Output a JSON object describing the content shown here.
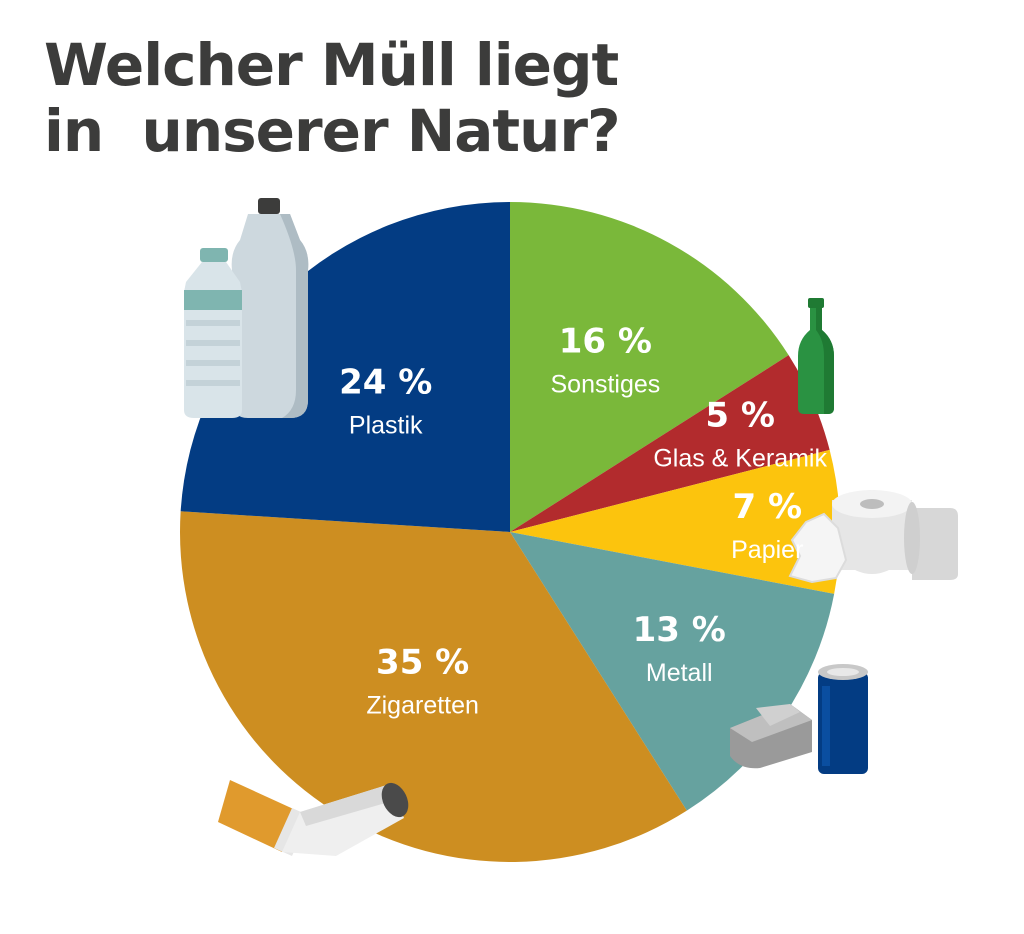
{
  "title_lines": [
    "Welcher Müll liegt",
    "in  unserer Natur?"
  ],
  "chart_data": {
    "type": "pie",
    "title": "Welcher Müll liegt in unserer Natur?",
    "start_angle_deg": 0,
    "direction": "clockwise",
    "slices": [
      {
        "label": "Sonstiges",
        "value": 16,
        "value_label": "16 %",
        "color": "#7ab83a"
      },
      {
        "label": "Glas & Keramik",
        "value": 5,
        "value_label": "5 %",
        "color": "#b22b2d"
      },
      {
        "label": "Papier",
        "value": 7,
        "value_label": "7 %",
        "color": "#fcc40d"
      },
      {
        "label": "Metall",
        "value": 13,
        "value_label": "13 %",
        "color": "#66a29f"
      },
      {
        "label": "Zigaretten",
        "value": 35,
        "value_label": "35 %",
        "color": "#cd8e21"
      },
      {
        "label": "Plastik",
        "value": 24,
        "value_label": "24 %",
        "color": "#033c83"
      }
    ]
  },
  "icons": [
    "plastic-bottles-icon",
    "glass-bottle-icon",
    "toilet-paper-icon",
    "tin-can-icon",
    "cigarette-butt-icon"
  ]
}
